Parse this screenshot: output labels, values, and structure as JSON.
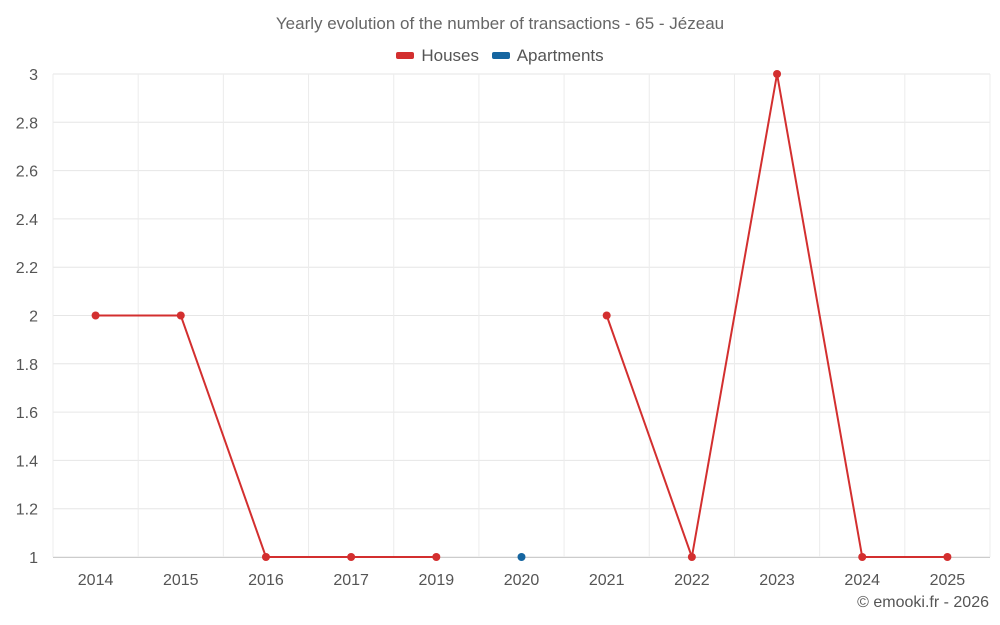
{
  "chart_data": {
    "type": "line",
    "title": "Yearly evolution of the number of transactions - 65 - Jézeau",
    "categories": [
      "2014",
      "2015",
      "2016",
      "2017",
      "2019",
      "2020",
      "2021",
      "2022",
      "2023",
      "2024",
      "2025"
    ],
    "series": [
      {
        "name": "Houses",
        "color": "#d32f2f",
        "values": [
          2,
          2,
          1,
          1,
          1,
          null,
          2,
          1,
          3,
          1,
          1
        ]
      },
      {
        "name": "Apartments",
        "color": "#1565a0",
        "values": [
          null,
          null,
          null,
          null,
          null,
          1,
          null,
          null,
          null,
          null,
          null
        ]
      }
    ],
    "ylim": [
      1,
      3
    ],
    "yticks": [
      "1",
      "1.2",
      "1.4",
      "1.6",
      "1.8",
      "2",
      "2.2",
      "2.4",
      "2.6",
      "2.8",
      "3"
    ],
    "grid": true,
    "legend_position": "top-center"
  },
  "credit": "© emooki.fr - 2026"
}
